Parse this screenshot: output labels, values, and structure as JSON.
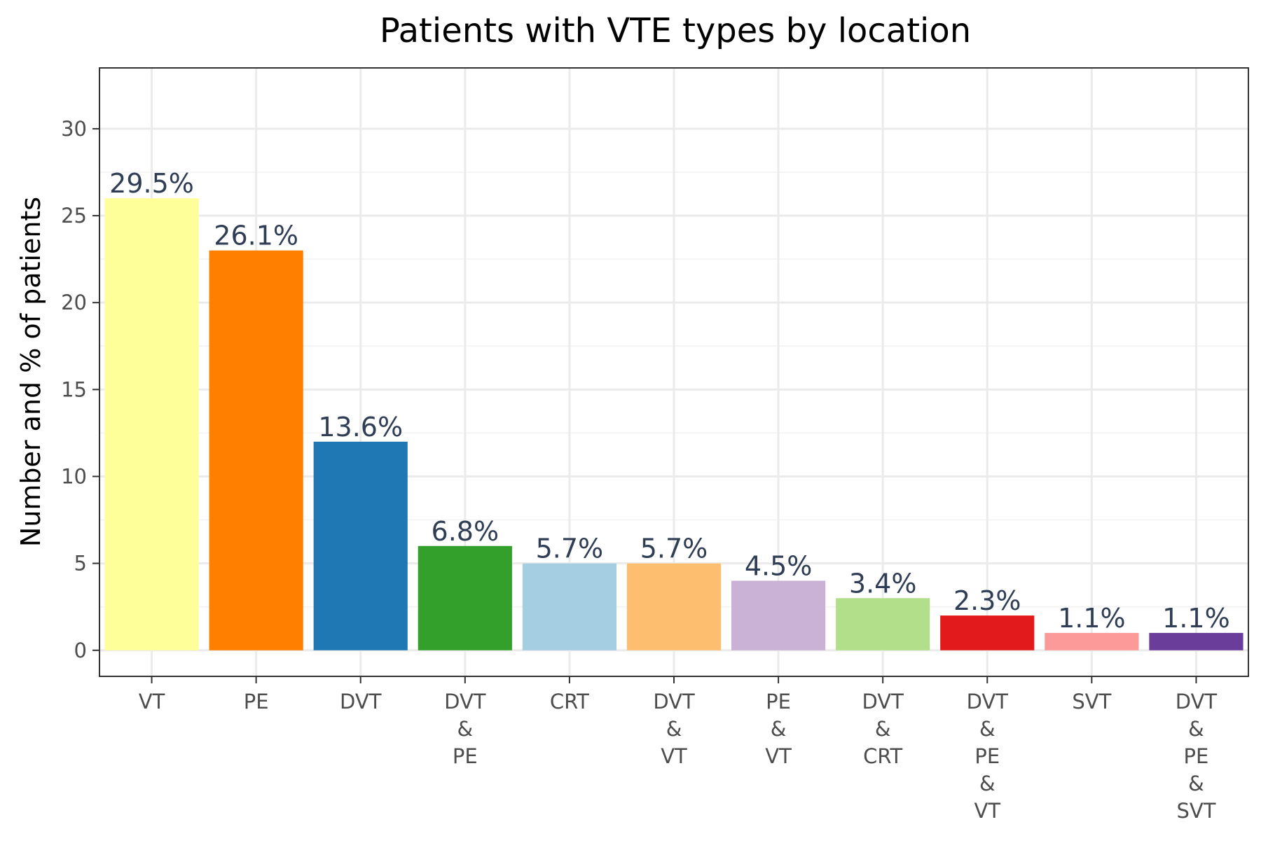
{
  "chart_data": {
    "type": "bar",
    "title": "Patients with VTE types by location",
    "xlabel": "",
    "ylabel": "Number and % of patients",
    "ylim": [
      -1.5,
      33.5
    ],
    "yticks": [
      0,
      5,
      10,
      15,
      20,
      25,
      30
    ],
    "grid": true,
    "legend": "none",
    "categories": [
      [
        "VT"
      ],
      [
        "PE"
      ],
      [
        "DVT"
      ],
      [
        "DVT",
        "&",
        "PE"
      ],
      [
        "CRT"
      ],
      [
        "DVT",
        "&",
        "VT"
      ],
      [
        "PE",
        "&",
        "VT"
      ],
      [
        "DVT",
        "&",
        "CRT"
      ],
      [
        "DVT",
        "&",
        "PE",
        "&",
        "VT"
      ],
      [
        "SVT"
      ],
      [
        "DVT",
        "&",
        "PE",
        "&",
        "SVT"
      ]
    ],
    "values": [
      26,
      23,
      12,
      6,
      5,
      5,
      4,
      3,
      2,
      1,
      1
    ],
    "labels": [
      "29.5%",
      "26.1%",
      "13.6%",
      "6.8%",
      "5.7%",
      "5.7%",
      "4.5%",
      "3.4%",
      "2.3%",
      "1.1%",
      "1.1%"
    ],
    "colors": [
      "#FFFF99",
      "#FF7F00",
      "#1F78B4",
      "#33A02C",
      "#A6CEE3",
      "#FDBF6F",
      "#CAB2D6",
      "#B2DF8A",
      "#E31A1C",
      "#FB9A99",
      "#6A3D9A"
    ]
  }
}
